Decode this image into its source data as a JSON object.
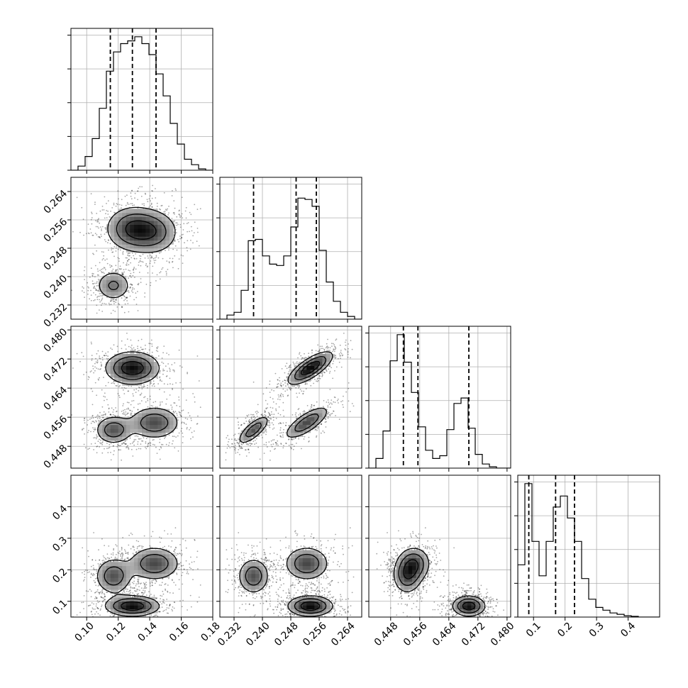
{
  "chart_data": {
    "type": "corner",
    "parameters": [
      {
        "range": [
          0.09,
          0.18
        ],
        "ticks": [
          0.1,
          0.12,
          0.14,
          0.16,
          0.18
        ],
        "tick_labels": [
          "0.10",
          "0.12",
          "0.14",
          "0.16",
          "0.18"
        ],
        "quantiles": [
          0.115,
          0.129,
          0.144
        ]
      },
      {
        "range": [
          0.228,
          0.268
        ],
        "ticks": [
          0.232,
          0.24,
          0.248,
          0.256,
          0.264
        ],
        "tick_labels": [
          "0.232",
          "0.240",
          "0.248",
          "0.256",
          "0.264"
        ],
        "quantiles": [
          0.2375,
          0.2495,
          0.2552
        ]
      },
      {
        "range": [
          0.442,
          0.481
        ],
        "ticks": [
          0.448,
          0.456,
          0.464,
          0.472,
          0.48
        ],
        "tick_labels": [
          "0.448",
          "0.456",
          "0.464",
          "0.472",
          "0.480"
        ],
        "quantiles": [
          0.4515,
          0.4555,
          0.4695
        ]
      },
      {
        "range": [
          0.05,
          0.5
        ],
        "ticks": [
          0.1,
          0.2,
          0.3,
          0.4
        ],
        "tick_labels": [
          "0.1",
          "0.2",
          "0.3",
          "0.4"
        ],
        "quantiles": [
          0.085,
          0.17,
          0.23
        ]
      }
    ],
    "histograms": [
      {
        "bin_start": 0.09,
        "bin_width": 0.0045,
        "counts": [
          0,
          0.03,
          0.1,
          0.23,
          0.45,
          0.72,
          0.86,
          0.92,
          0.94,
          0.97,
          0.92,
          0.84,
          0.7,
          0.54,
          0.34,
          0.19,
          0.08,
          0.04,
          0.01,
          0
        ]
      },
      {
        "bin_start": 0.228,
        "bin_width": 0.002,
        "counts": [
          0,
          0.03,
          0.05,
          0.21,
          0.57,
          0.58,
          0.46,
          0.4,
          0.39,
          0.46,
          0.67,
          0.88,
          0.87,
          0.82,
          0.5,
          0.27,
          0.13,
          0.05,
          0.02,
          0
        ]
      },
      {
        "bin_start": 0.442,
        "bin_width": 0.00195,
        "counts": [
          0,
          0.07,
          0.27,
          0.78,
          0.97,
          0.77,
          0.55,
          0.3,
          0.13,
          0.07,
          0.09,
          0.28,
          0.47,
          0.51,
          0.29,
          0.1,
          0.03,
          0.01,
          0,
          0
        ]
      },
      {
        "bin_start": 0.05,
        "bin_width": 0.0225,
        "counts": [
          0.38,
          0.97,
          0.55,
          0.3,
          0.55,
          0.8,
          0.88,
          0.72,
          0.55,
          0.28,
          0.13,
          0.07,
          0.05,
          0.03,
          0.02,
          0.01,
          0.005,
          0,
          0,
          0
        ]
      }
    ],
    "modes": [
      {
        "params": [
          0.129,
          0.2535,
          0.4695,
          0.085
        ],
        "spread": [
          0.0095,
          0.0035,
          0.0025,
          0.018
        ],
        "corr_12": 0.75,
        "weight": 0.42
      },
      {
        "params": [
          0.143,
          0.2525,
          0.4545,
          0.22
        ],
        "spread": [
          0.009,
          0.0035,
          0.0025,
          0.03
        ],
        "corr_12": 0.75,
        "weight": 0.3
      },
      {
        "params": [
          0.117,
          0.2375,
          0.4525,
          0.18
        ],
        "spread": [
          0.0065,
          0.0025,
          0.0022,
          0.032
        ],
        "corr_12": 0.75,
        "weight": 0.28
      }
    ],
    "contour_levels": [
      0.2,
      0.45,
      0.75
    ]
  }
}
